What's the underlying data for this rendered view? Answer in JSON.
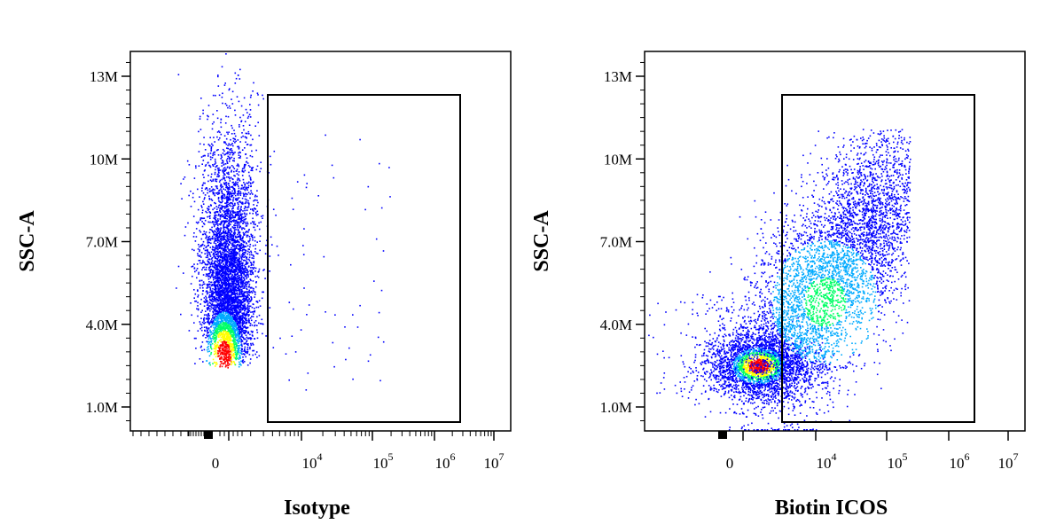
{
  "chart_data": [
    {
      "type": "scatter",
      "style": "density-colored flow cytometry dot plot",
      "xlabel": "Isotype",
      "ylabel": "SSC-A",
      "x_scale": "biexponential",
      "x_ticks": [
        {
          "value": 0,
          "base": "0",
          "exp": ""
        },
        {
          "value": 10000,
          "base": "10",
          "exp": "4"
        },
        {
          "value": 100000,
          "base": "10",
          "exp": "5"
        },
        {
          "value": 1000000,
          "base": "10",
          "exp": "6"
        },
        {
          "value": 10000000,
          "base": "10",
          "exp": "7"
        }
      ],
      "y_ticks": [
        "1.0M",
        "4.0M",
        "7.0M",
        "10M",
        "13M"
      ],
      "y_tick_values": [
        1000000,
        4000000,
        7000000,
        10000000,
        13000000
      ],
      "ylim": [
        0,
        14000000
      ],
      "gate": {
        "x_min": 2500,
        "x_max": 2500000,
        "y_min": 500000,
        "y_max": 12400000
      },
      "population": {
        "x_center": 0,
        "y_center": 2500000,
        "events_in_gate": "few"
      },
      "density_colors": [
        "#0000ff",
        "#00aaff",
        "#00ff66",
        "#ffff00",
        "#ff0000"
      ]
    },
    {
      "type": "scatter",
      "style": "density-colored flow cytometry dot plot",
      "xlabel": "Biotin ICOS",
      "ylabel": "SSC-A",
      "x_scale": "biexponential",
      "x_ticks": [
        {
          "value": 0,
          "base": "0",
          "exp": ""
        },
        {
          "value": 10000,
          "base": "10",
          "exp": "4"
        },
        {
          "value": 100000,
          "base": "10",
          "exp": "5"
        },
        {
          "value": 1000000,
          "base": "10",
          "exp": "6"
        },
        {
          "value": 10000000,
          "base": "10",
          "exp": "7"
        }
      ],
      "y_ticks": [
        "1.0M",
        "4.0M",
        "7.0M",
        "10M",
        "13M"
      ],
      "y_tick_values": [
        1000000,
        4000000,
        7000000,
        10000000,
        13000000
      ],
      "ylim": [
        0,
        14000000
      ],
      "gate": {
        "x_min": 2500,
        "x_max": 2500000,
        "y_min": 500000,
        "y_max": 12400000
      },
      "population": {
        "x_center": 1500,
        "y_center": 2500000,
        "events_in_gate": "many"
      },
      "density_colors": [
        "#0000ff",
        "#00aaff",
        "#00ff66",
        "#ffff00",
        "#ff0000"
      ]
    }
  ]
}
